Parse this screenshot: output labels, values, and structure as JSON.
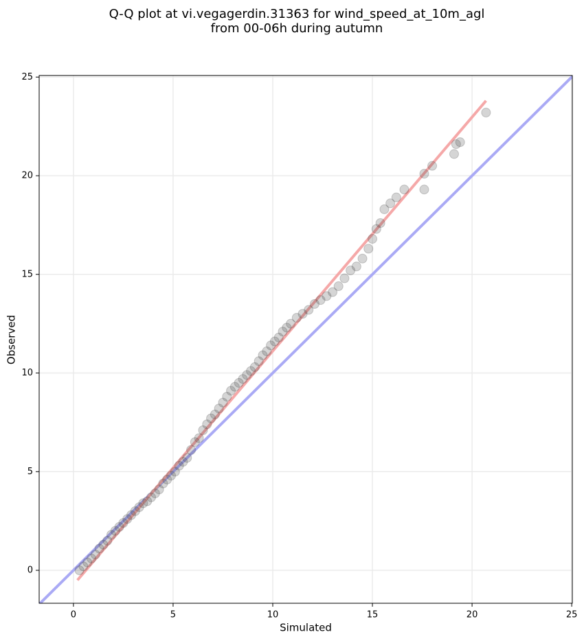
{
  "chart_data": {
    "type": "scatter",
    "title": [
      "Q-Q plot at vi.vegagerdin.31363 for wind_speed_at_10m_agl",
      "from 00-06h during autumn"
    ],
    "xlabel": "Simulated",
    "ylabel": "Observed",
    "xlim": [
      -1.72,
      25.03
    ],
    "ylim": [
      -1.67,
      25.08
    ],
    "xticks": [
      0,
      5,
      10,
      15,
      20,
      25
    ],
    "yticks": [
      0,
      5,
      10,
      15,
      20,
      25
    ],
    "grid": true,
    "series": [
      {
        "color": "#404040",
        "x": [
          0.3,
          0.5,
          0.7,
          0.9,
          1.1,
          1.3,
          1.5,
          1.7,
          1.9,
          2.1,
          2.3,
          2.5,
          2.7,
          2.9,
          3.1,
          3.3,
          3.5,
          3.7,
          3.9,
          4.1,
          4.3,
          4.5,
          4.7,
          4.9,
          5.1,
          5.3,
          5.5,
          5.7,
          5.9,
          6.1,
          6.3,
          6.5,
          6.7,
          6.9,
          7.1,
          7.3,
          7.5,
          7.7,
          7.9,
          8.1,
          8.3,
          8.5,
          8.7,
          8.9,
          9.1,
          9.3,
          9.5,
          9.7,
          9.9,
          10.1,
          10.3,
          10.5,
          10.7,
          10.9,
          11.2,
          11.5,
          11.8,
          12.1,
          12.4,
          12.7,
          13.0,
          13.3,
          13.6,
          13.9,
          14.2,
          14.5,
          14.8,
          15.0,
          15.2,
          15.4,
          15.6,
          15.9,
          16.2,
          16.6,
          17.6,
          17.6,
          18.0,
          19.1,
          19.2,
          19.4,
          20.7
        ],
        "values": [
          0.0,
          0.2,
          0.4,
          0.6,
          0.8,
          1.1,
          1.3,
          1.5,
          1.8,
          2.0,
          2.2,
          2.4,
          2.6,
          2.8,
          3.0,
          3.2,
          3.4,
          3.5,
          3.7,
          3.9,
          4.1,
          4.4,
          4.6,
          4.8,
          5.0,
          5.3,
          5.5,
          5.7,
          6.1,
          6.5,
          6.7,
          7.1,
          7.4,
          7.7,
          7.9,
          8.2,
          8.5,
          8.8,
          9.1,
          9.3,
          9.5,
          9.7,
          9.9,
          10.1,
          10.3,
          10.6,
          10.9,
          11.1,
          11.4,
          11.6,
          11.8,
          12.1,
          12.3,
          12.5,
          12.8,
          13.0,
          13.2,
          13.5,
          13.7,
          13.9,
          14.1,
          14.4,
          14.8,
          15.2,
          15.4,
          15.8,
          16.3,
          16.8,
          17.3,
          17.6,
          18.3,
          18.6,
          18.9,
          19.3,
          19.3,
          20.1,
          20.5,
          21.1,
          21.6,
          21.7,
          23.2
        ]
      }
    ],
    "reference_line": {
      "color": "#aaaaf5",
      "x": [
        -1.72,
        25.03
      ],
      "y": [
        -1.72,
        25.03
      ]
    },
    "fit_line": {
      "color": "#f5a8a8",
      "x": [
        0.2,
        20.7
      ],
      "y": [
        -0.5,
        23.8
      ]
    }
  }
}
